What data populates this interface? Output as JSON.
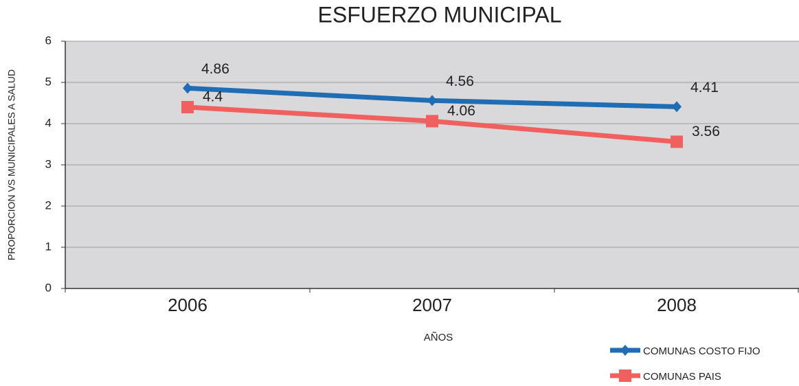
{
  "chart_data": {
    "type": "line",
    "title": "ESFUERZO MUNICIPAL",
    "x_label": "AÑOS",
    "y_label": "PROPORCION  VS MUNICIPALES A SALUD",
    "categories": [
      "2006",
      "2007",
      "2008"
    ],
    "series": [
      {
        "name": "COMUNAS COSTO FIJO",
        "color": "#1f6db4",
        "marker": "diamond",
        "values": [
          4.86,
          4.56,
          4.41
        ]
      },
      {
        "name": "COMUNAS PAIS",
        "color": "#f0605e",
        "marker": "square",
        "values": [
          4.4,
          4.06,
          3.56
        ]
      }
    ],
    "ylim": [
      0,
      6
    ],
    "yticks": [
      0,
      1,
      2,
      3,
      4,
      5,
      6
    ],
    "grid": true,
    "legend": "bottom-right"
  }
}
